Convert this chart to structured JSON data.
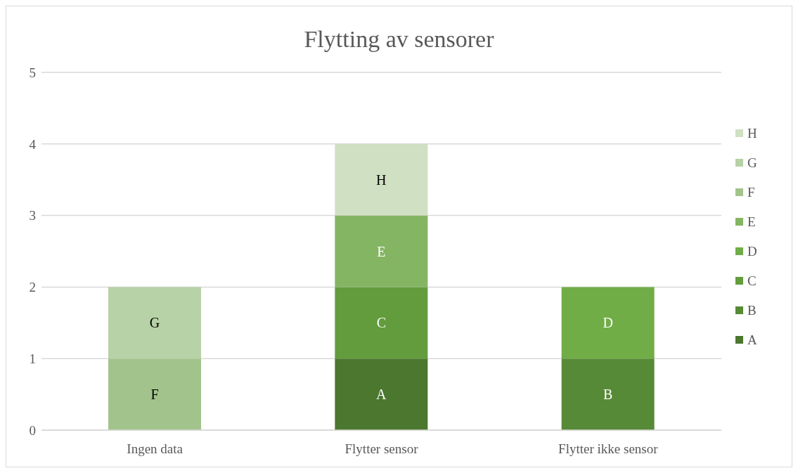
{
  "chart_data": {
    "type": "bar",
    "title": "Flytting av sensorer",
    "categories": [
      "Ingen data",
      "Flytter sensor",
      "Flytter ikke sensor"
    ],
    "stacked": true,
    "series": [
      {
        "name": "A",
        "color": "#4b772f",
        "values": [
          null,
          1,
          null
        ],
        "value_labels": [
          null,
          "A",
          null
        ]
      },
      {
        "name": "B",
        "color": "#578a37",
        "values": [
          null,
          null,
          1
        ],
        "value_labels": [
          null,
          null,
          "B"
        ]
      },
      {
        "name": "C",
        "color": "#629c3d",
        "values": [
          null,
          1,
          null
        ],
        "value_labels": [
          null,
          "C",
          null
        ]
      },
      {
        "name": "D",
        "color": "#70ad47",
        "values": [
          null,
          null,
          1
        ],
        "value_labels": [
          null,
          null,
          "D"
        ]
      },
      {
        "name": "E",
        "color": "#84b563",
        "values": [
          null,
          1,
          null
        ],
        "value_labels": [
          null,
          "E",
          null
        ]
      },
      {
        "name": "F",
        "color": "#a2c48c",
        "values": [
          1,
          null,
          null
        ],
        "value_labels": [
          "F",
          null,
          null
        ]
      },
      {
        "name": "G",
        "color": "#b7d2a6",
        "values": [
          1,
          null,
          null
        ],
        "value_labels": [
          "G",
          null,
          null
        ]
      },
      {
        "name": "H",
        "color": "#d0e0c3",
        "values": [
          null,
          1,
          null
        ],
        "value_labels": [
          null,
          "H",
          null
        ]
      }
    ],
    "ylim": [
      0,
      5
    ],
    "yticks": [
      0,
      1,
      2,
      3,
      4,
      5
    ],
    "grid": "y",
    "legend": "right"
  }
}
